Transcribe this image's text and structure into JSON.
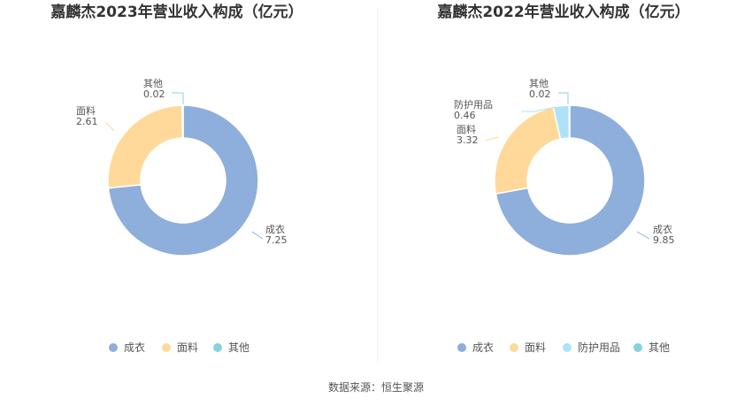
{
  "source": "数据来源：恒生聚源",
  "colors": {
    "成衣": "#8eaedb",
    "面料": "#ffd99a",
    "防护用品": "#aee2f8",
    "其他": "#86d3dc"
  },
  "chart_data": [
    {
      "type": "pie",
      "donut": true,
      "title": "嘉麟杰2023年营业收入构成（亿元）",
      "legend_position": "bottom",
      "categories": [
        "成衣",
        "面料",
        "其他"
      ],
      "values": [
        7.25,
        2.61,
        0.02
      ]
    },
    {
      "type": "pie",
      "donut": true,
      "title": "嘉麟杰2022年营业收入构成（亿元）",
      "legend_position": "bottom",
      "categories": [
        "成衣",
        "面料",
        "防护用品",
        "其他"
      ],
      "values": [
        9.85,
        3.32,
        0.46,
        0.02
      ]
    }
  ]
}
